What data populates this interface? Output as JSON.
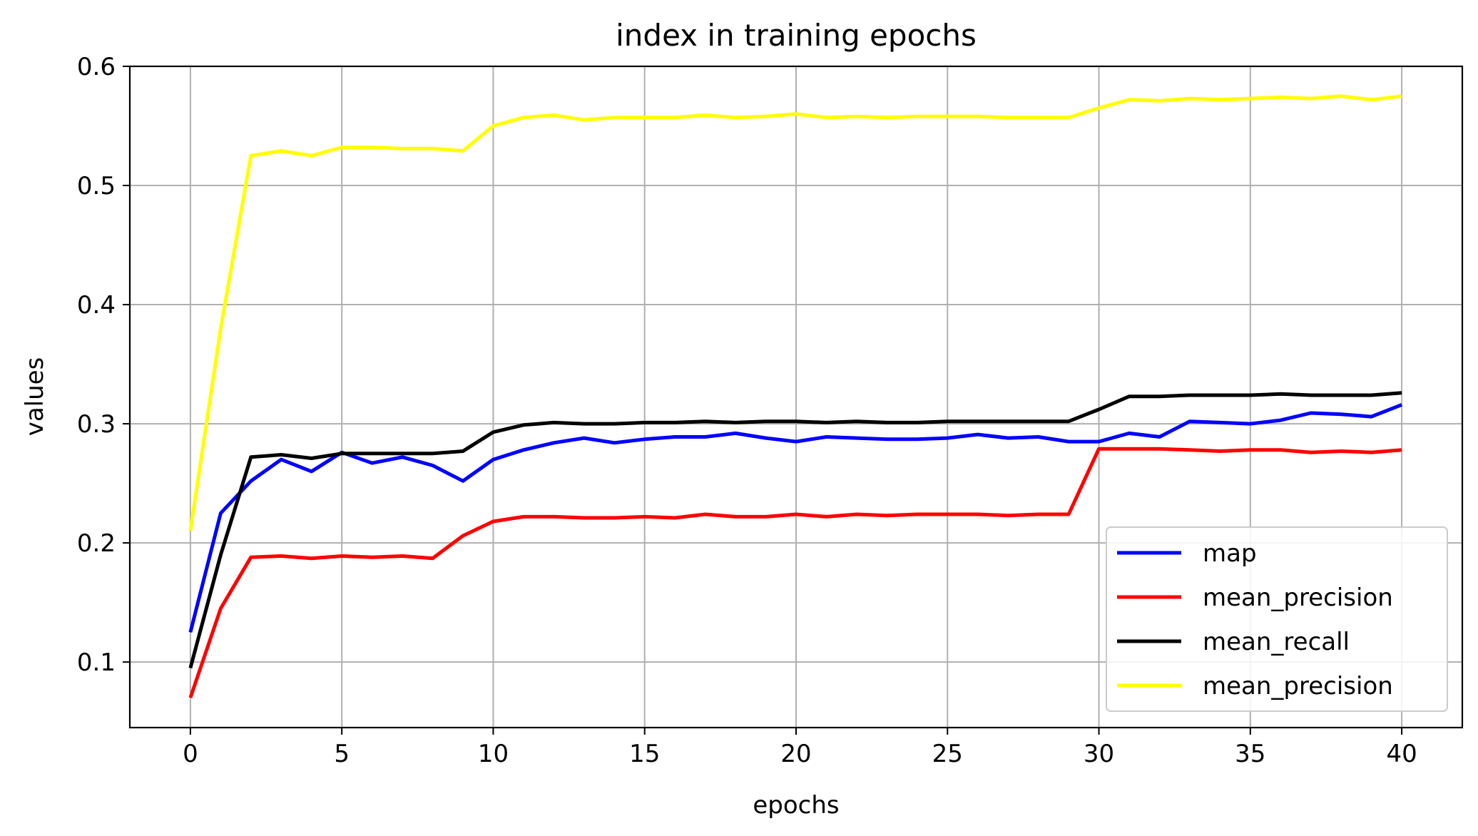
{
  "chart_data": {
    "type": "line",
    "title": "index in training epochs",
    "xlabel": "epochs",
    "ylabel": "values",
    "xlim": [
      -2,
      42
    ],
    "ylim": [
      0.045,
      0.6
    ],
    "xticks": [
      0,
      5,
      10,
      15,
      20,
      25,
      30,
      35,
      40
    ],
    "xtick_labels": [
      "0",
      "5",
      "10",
      "15",
      "20",
      "25",
      "30",
      "35",
      "40"
    ],
    "yticks": [
      0.1,
      0.2,
      0.3,
      0.4,
      0.5,
      0.6
    ],
    "ytick_labels": [
      "0.1",
      "0.2",
      "0.3",
      "0.4",
      "0.5",
      "0.6"
    ],
    "grid": true,
    "legend_position": "lower-right",
    "x": [
      0,
      1,
      2,
      3,
      4,
      5,
      6,
      7,
      8,
      9,
      10,
      11,
      12,
      13,
      14,
      15,
      16,
      17,
      18,
      19,
      20,
      21,
      22,
      23,
      24,
      25,
      26,
      27,
      28,
      29,
      30,
      31,
      32,
      33,
      34,
      35,
      36,
      37,
      38,
      39,
      40
    ],
    "series": [
      {
        "name": "map",
        "color": "#0000ff",
        "values": [
          0.125,
          0.225,
          0.252,
          0.27,
          0.26,
          0.276,
          0.267,
          0.272,
          0.265,
          0.252,
          0.27,
          0.278,
          0.284,
          0.288,
          0.284,
          0.287,
          0.289,
          0.289,
          0.292,
          0.288,
          0.285,
          0.289,
          0.288,
          0.287,
          0.287,
          0.288,
          0.291,
          0.288,
          0.289,
          0.285,
          0.285,
          0.292,
          0.289,
          0.302,
          0.301,
          0.3,
          0.303,
          0.309,
          0.308,
          0.306,
          0.316
        ]
      },
      {
        "name": "mean_precision",
        "color": "#ff0000",
        "values": [
          0.07,
          0.145,
          0.188,
          0.189,
          0.187,
          0.189,
          0.188,
          0.189,
          0.187,
          0.206,
          0.218,
          0.222,
          0.222,
          0.221,
          0.221,
          0.222,
          0.221,
          0.224,
          0.222,
          0.222,
          0.224,
          0.222,
          0.224,
          0.223,
          0.224,
          0.224,
          0.224,
          0.223,
          0.224,
          0.224,
          0.279,
          0.279,
          0.279,
          0.278,
          0.277,
          0.278,
          0.278,
          0.276,
          0.277,
          0.276,
          0.278
        ]
      },
      {
        "name": "mean_recall",
        "color": "#000000",
        "values": [
          0.095,
          0.19,
          0.272,
          0.274,
          0.271,
          0.275,
          0.275,
          0.275,
          0.275,
          0.277,
          0.293,
          0.299,
          0.301,
          0.3,
          0.3,
          0.301,
          0.301,
          0.302,
          0.301,
          0.302,
          0.302,
          0.301,
          0.302,
          0.301,
          0.301,
          0.302,
          0.302,
          0.302,
          0.302,
          0.302,
          0.312,
          0.323,
          0.323,
          0.324,
          0.324,
          0.324,
          0.325,
          0.324,
          0.324,
          0.324,
          0.326
        ]
      },
      {
        "name": "mean_precision",
        "color": "#ffff00",
        "values": [
          0.21,
          0.38,
          0.525,
          0.529,
          0.525,
          0.532,
          0.532,
          0.531,
          0.531,
          0.529,
          0.55,
          0.557,
          0.559,
          0.555,
          0.557,
          0.557,
          0.557,
          0.559,
          0.557,
          0.558,
          0.56,
          0.557,
          0.558,
          0.557,
          0.558,
          0.558,
          0.558,
          0.557,
          0.557,
          0.557,
          0.565,
          0.572,
          0.571,
          0.573,
          0.572,
          0.573,
          0.574,
          0.573,
          0.575,
          0.572,
          0.575
        ]
      }
    ]
  }
}
